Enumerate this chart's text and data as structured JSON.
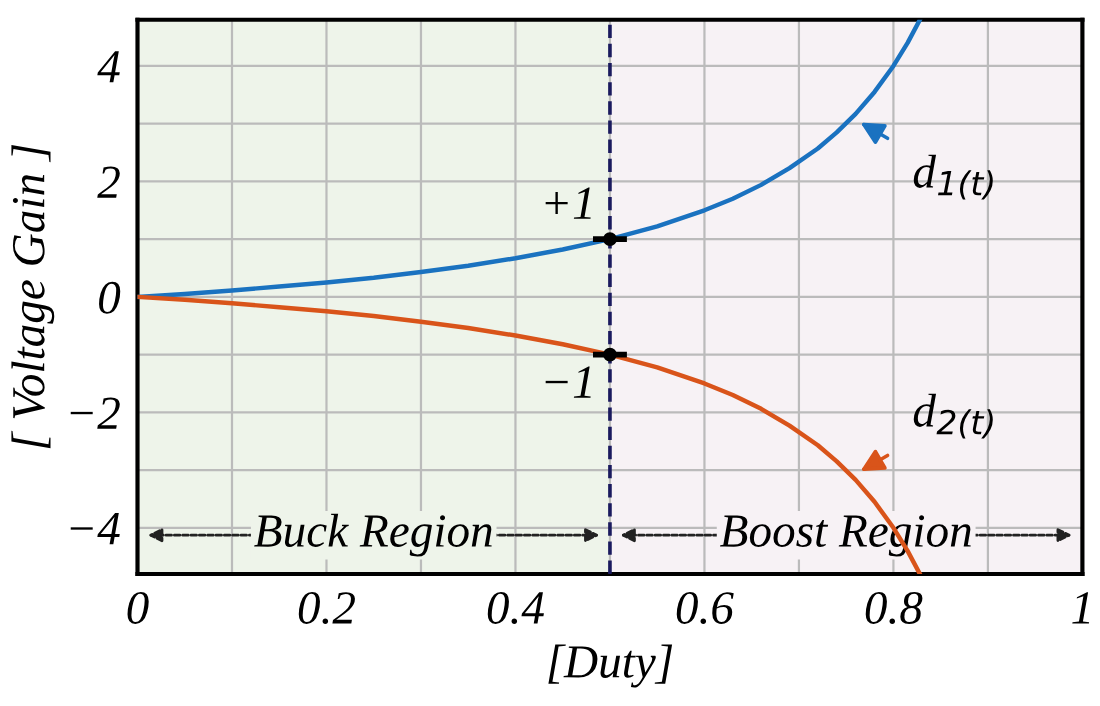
{
  "chart_data": {
    "type": "line",
    "xlabel": "[Duty]",
    "ylabel": "[ Voltage Gain ]",
    "x": [
      0,
      0.05,
      0.1,
      0.15,
      0.2,
      0.25,
      0.3,
      0.35,
      0.4,
      0.45,
      0.5,
      0.55,
      0.6,
      0.63,
      0.66,
      0.69,
      0.72,
      0.74,
      0.76,
      0.78,
      0.8,
      0.815,
      0.828
    ],
    "series": [
      {
        "name": "d$_{1(t)}$",
        "color": "#1a72c0",
        "values": [
          0,
          0.05,
          0.11,
          0.18,
          0.25,
          0.33,
          0.43,
          0.54,
          0.67,
          0.82,
          1,
          1.22,
          1.5,
          1.7,
          1.94,
          2.23,
          2.57,
          2.85,
          3.17,
          3.55,
          4,
          4.4,
          4.8
        ]
      },
      {
        "name": "d$_{2(t)}$",
        "color": "#d9541a",
        "values": [
          0,
          -0.05,
          -0.11,
          -0.18,
          -0.25,
          -0.33,
          -0.43,
          -0.54,
          -0.67,
          -0.82,
          -1,
          -1.22,
          -1.5,
          -1.7,
          -1.94,
          -2.23,
          -2.57,
          -2.85,
          -3.17,
          -3.55,
          -4,
          -4.4,
          -4.8
        ]
      }
    ],
    "xlim": [
      0,
      1
    ],
    "ylim": [
      -4.8,
      4.8
    ],
    "xticks": [
      0,
      {
        "value": 0.1,
        "label": null
      },
      0.2,
      {
        "value": 0.3,
        "label": null
      },
      0.4,
      {
        "value": 0.5,
        "label": null
      },
      0.6,
      {
        "value": 0.7,
        "label": null
      },
      0.8,
      {
        "value": 0.9,
        "label": null
      },
      1
    ],
    "yticks": [
      -4,
      {
        "value": -3,
        "label": null
      },
      -2,
      {
        "value": -1,
        "label": null
      },
      0,
      {
        "value": 1,
        "label": null
      },
      2,
      {
        "value": 3,
        "label": null
      },
      4
    ],
    "grid": true,
    "legend": false,
    "ref_lines": [
      {
        "axis": "x",
        "value": 0.5,
        "color": "#1a1a5e",
        "line_style": "dashed"
      }
    ],
    "bands": [
      {
        "axis": "x",
        "from": 0,
        "to": 0.5,
        "label": "Buck Region",
        "color": "#eef4ea"
      },
      {
        "axis": "x",
        "from": 0.5,
        "to": 1,
        "label": "Boost Region",
        "color": "#f7f2f5"
      }
    ],
    "annotations": [
      {
        "text": "+1",
        "x": 0.5,
        "y": 1
      },
      {
        "text": "−1",
        "x": 0.5,
        "y": -1
      }
    ]
  }
}
